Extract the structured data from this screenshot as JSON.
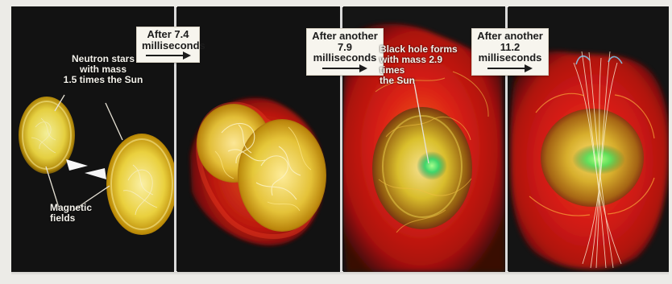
{
  "figure": {
    "time_labels": [
      {
        "line1": "After 7.4",
        "line2": "milliseconds",
        "arrow_icon": "right-arrow-icon"
      },
      {
        "line1": "After another",
        "line2": "7.9 milliseconds",
        "arrow_icon": "right-arrow-icon"
      },
      {
        "line1": "After another",
        "line2": "11.2 milliseconds",
        "arrow_icon": "right-arrow-icon"
      }
    ],
    "annotations": {
      "neutron_stars": [
        "Neutron stars",
        "with mass",
        "1.5 times the Sun"
      ],
      "magnetic_fields": [
        "Magnetic",
        "fields"
      ],
      "black_hole": [
        "Black hole forms",
        "with mass 2.9 times",
        "the Sun"
      ]
    },
    "colors": {
      "panel_background": "#131313",
      "star_core": "#f6e96a",
      "star_outer": "#b48a09",
      "red_ejecta": "#d41d12",
      "green_core": "#56d861",
      "field_lines": "#f6f0d1"
    }
  }
}
